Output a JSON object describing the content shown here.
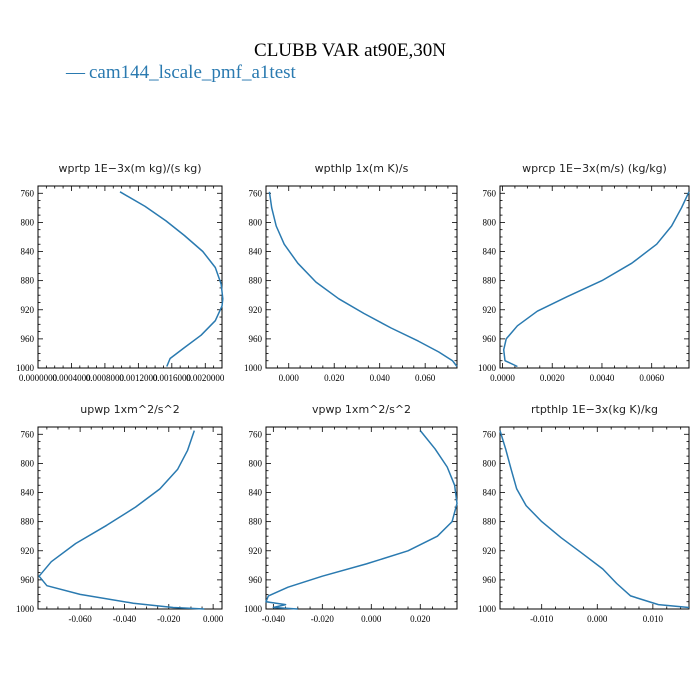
{
  "figure": {
    "title": "CLUBB VAR at90E,30N",
    "legend": [
      {
        "marker": "—",
        "label": "cam144_lscale_pmf_a1test",
        "color": "#2a7ab0"
      }
    ]
  },
  "chart_data": [
    {
      "type": "line",
      "title": "wprtp  1E−3x(m kg)/(s kg)",
      "xlabel": "",
      "ylabel": "",
      "xlim": [
        0.0,
        0.0022
      ],
      "ylim": [
        1000,
        750
      ],
      "x_ticks": [
        0.0,
        0.0004,
        0.0008,
        0.0012,
        0.0016,
        0.002
      ],
      "x_tick_labels": [
        "0.0000000",
        "0.0004000",
        "0.0008000",
        "0.0012000",
        "0.0016000",
        "0.0020000"
      ],
      "y_ticks": [
        760,
        800,
        840,
        880,
        920,
        960,
        1000
      ],
      "series": [
        {
          "name": "cam144_lscale_pmf_a1test",
          "color": "#2a7ab0",
          "x": [
            0.00098,
            0.00128,
            0.00153,
            0.00175,
            0.00197,
            0.00212,
            0.00219,
            0.00221,
            0.0022,
            0.00212,
            0.00195,
            0.00175,
            0.00158,
            0.00154
          ],
          "y": [
            758,
            778,
            798,
            818,
            840,
            862,
            885,
            905,
            915,
            935,
            955,
            972,
            987,
            998
          ]
        }
      ]
    },
    {
      "type": "line",
      "title": "wpthlp  1x(m K)/s",
      "xlabel": "",
      "ylabel": "",
      "xlim": [
        -0.01,
        0.074
      ],
      "ylim": [
        1000,
        750
      ],
      "x_ticks": [
        0.0,
        0.02,
        0.04,
        0.06
      ],
      "x_tick_labels": [
        "0.000",
        "0.020",
        "0.040",
        "0.060"
      ],
      "y_ticks": [
        760,
        800,
        840,
        880,
        920,
        960,
        1000
      ],
      "series": [
        {
          "name": "cam144_lscale_pmf_a1test",
          "color": "#2a7ab0",
          "x": [
            -0.0085,
            -0.0075,
            -0.0055,
            -0.002,
            0.004,
            0.012,
            0.022,
            0.033,
            0.045,
            0.057,
            0.066,
            0.072,
            0.074
          ],
          "y": [
            758,
            780,
            805,
            830,
            856,
            882,
            905,
            925,
            945,
            963,
            978,
            990,
            998
          ]
        }
      ]
    },
    {
      "type": "line",
      "title": "wprcp  1E−3x(m/s) (kg/kg)",
      "xlabel": "",
      "ylabel": "",
      "xlim": [
        -0.0001,
        0.0075
      ],
      "ylim": [
        1000,
        750
      ],
      "x_ticks": [
        0.0,
        0.002,
        0.004,
        0.006
      ],
      "x_tick_labels": [
        "0.0000",
        "0.0020",
        "0.0040",
        "0.0060"
      ],
      "y_ticks": [
        760,
        800,
        840,
        880,
        920,
        960,
        1000
      ],
      "series": [
        {
          "name": "cam144_lscale_pmf_a1test",
          "color": "#2a7ab0",
          "x": [
            0.0075,
            0.0072,
            0.0068,
            0.0062,
            0.0052,
            0.004,
            0.0026,
            0.0014,
            0.0006,
            0.00015,
            5e-05,
            0.0001,
            0.0006
          ],
          "y": [
            758,
            780,
            805,
            830,
            856,
            880,
            902,
            922,
            942,
            960,
            975,
            990,
            998
          ]
        }
      ]
    },
    {
      "type": "line",
      "title": "upwp  1xm^2/s^2",
      "xlabel": "",
      "ylabel": "",
      "xlim": [
        -0.079,
        0.004
      ],
      "ylim": [
        1000,
        750
      ],
      "x_ticks": [
        -0.06,
        -0.04,
        -0.02,
        0.0
      ],
      "x_tick_labels": [
        "-0.060",
        "-0.040",
        "-0.020",
        "0.000"
      ],
      "y_ticks": [
        760,
        800,
        840,
        880,
        920,
        960,
        1000
      ],
      "series": [
        {
          "name": "cam144_lscale_pmf_a1test",
          "color": "#2a7ab0",
          "x": [
            -0.0085,
            -0.0115,
            -0.016,
            -0.024,
            -0.035,
            -0.048,
            -0.062,
            -0.073,
            -0.0785,
            -0.075,
            -0.06,
            -0.036,
            -0.018,
            -0.004
          ],
          "y": [
            755,
            782,
            808,
            835,
            860,
            885,
            910,
            935,
            955,
            968,
            980,
            992,
            998,
            1000
          ]
        }
      ]
    },
    {
      "type": "line",
      "title": "vpwp  1xm^2/s^2",
      "xlabel": "",
      "ylabel": "",
      "xlim": [
        -0.043,
        0.035
      ],
      "ylim": [
        1000,
        750
      ],
      "x_ticks": [
        -0.04,
        -0.02,
        0.0,
        0.02
      ],
      "x_tick_labels": [
        "-0.040",
        "-0.020",
        "0.000",
        "0.020"
      ],
      "y_ticks": [
        760,
        800,
        840,
        880,
        920,
        960,
        1000
      ],
      "series": [
        {
          "name": "cam144_lscale_pmf_a1test",
          "color": "#2a7ab0",
          "x": [
            0.02,
            0.026,
            0.031,
            0.034,
            0.035,
            0.033,
            0.027,
            0.015,
            -0.002,
            -0.02,
            -0.034,
            -0.042,
            -0.043,
            -0.035,
            -0.04,
            -0.03
          ],
          "y": [
            755,
            780,
            805,
            830,
            855,
            880,
            900,
            920,
            938,
            955,
            970,
            982,
            990,
            994,
            998,
            1000
          ]
        }
      ]
    },
    {
      "type": "line",
      "title": "rtpthlp  1E−3x(kg K)/kg",
      "xlabel": "",
      "ylabel": "",
      "xlim": [
        -0.0175,
        0.0165
      ],
      "ylim": [
        1000,
        750
      ],
      "x_ticks": [
        -0.01,
        0.0,
        0.01
      ],
      "x_tick_labels": [
        "-0.010",
        "0.000",
        "0.010"
      ],
      "y_ticks": [
        760,
        800,
        840,
        880,
        920,
        960,
        1000
      ],
      "series": [
        {
          "name": "cam144_lscale_pmf_a1test",
          "color": "#2a7ab0",
          "x": [
            -0.0175,
            -0.0165,
            -0.0155,
            -0.0145,
            -0.0128,
            -0.01,
            -0.0065,
            -0.003,
            0.001,
            0.0035,
            0.006,
            0.011,
            0.0165
          ],
          "y": [
            755,
            780,
            808,
            835,
            858,
            880,
            902,
            922,
            945,
            965,
            982,
            994,
            998
          ]
        }
      ]
    }
  ]
}
